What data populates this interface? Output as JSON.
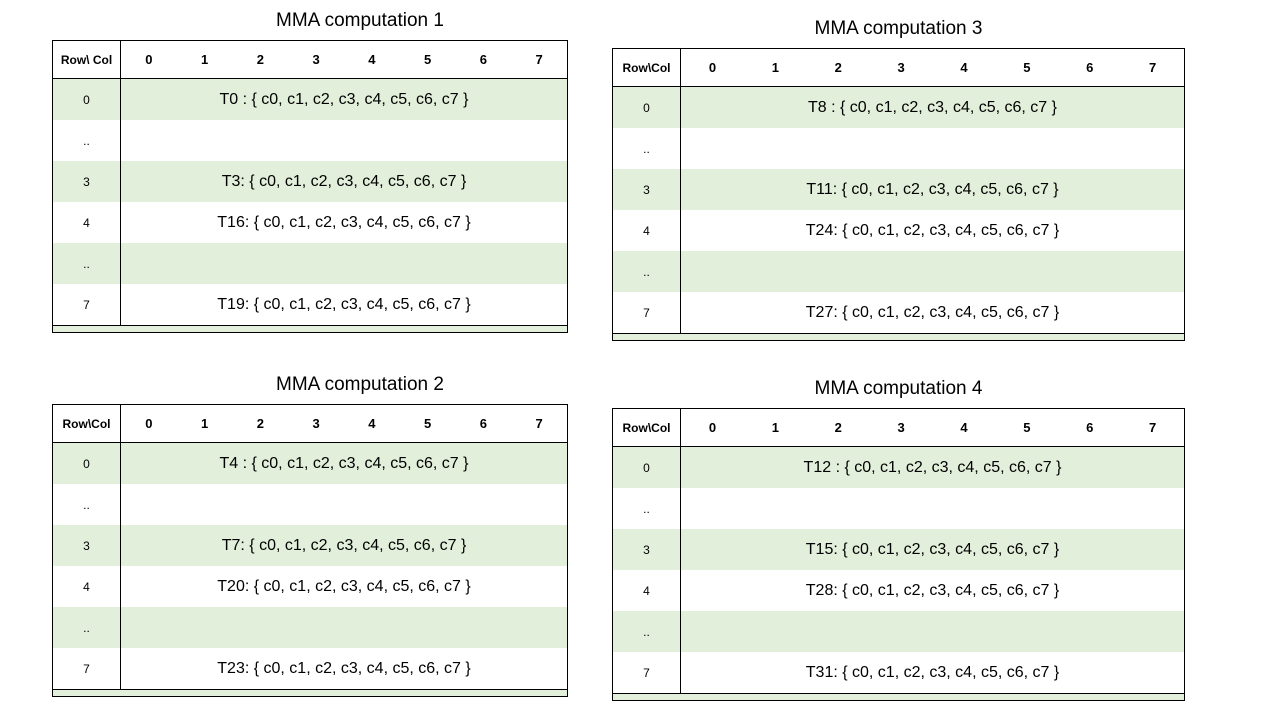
{
  "colors": {
    "shaded_row": "#e2efda",
    "border": "#000000",
    "background": "#ffffff"
  },
  "tables": [
    {
      "title": "MMA computation 1",
      "header": {
        "corner": "Row\\ Col",
        "cols": [
          "0",
          "1",
          "2",
          "3",
          "4",
          "5",
          "6",
          "7"
        ]
      },
      "rows": [
        {
          "label": "0",
          "text": "T0 : { c0, c1, c2, c3, c4, c5, c6, c7 }"
        },
        {
          "label": "..",
          "text": ""
        },
        {
          "label": "3",
          "text": "T3: { c0, c1, c2, c3, c4, c5, c6, c7 }"
        },
        {
          "label": "4",
          "text": "T16: { c0, c1, c2, c3, c4, c5, c6, c7 }"
        },
        {
          "label": "..",
          "text": ""
        },
        {
          "label": "7",
          "text": "T19: { c0, c1, c2, c3, c4, c5, c6, c7 }"
        }
      ]
    },
    {
      "title": "MMA computation 3",
      "header": {
        "corner": "Row\\Col",
        "cols": [
          "0",
          "1",
          "2",
          "3",
          "4",
          "5",
          "6",
          "7"
        ]
      },
      "rows": [
        {
          "label": "0",
          "text": "T8 : { c0, c1, c2, c3, c4, c5, c6, c7 }"
        },
        {
          "label": "..",
          "text": ""
        },
        {
          "label": "3",
          "text": "T11: { c0, c1, c2, c3, c4, c5, c6, c7 }"
        },
        {
          "label": "4",
          "text": "T24: { c0, c1, c2, c3, c4, c5, c6, c7 }"
        },
        {
          "label": "..",
          "text": ""
        },
        {
          "label": "7",
          "text": "T27: { c0, c1, c2, c3, c4, c5, c6, c7 }"
        }
      ]
    },
    {
      "title": "MMA computation 2",
      "header": {
        "corner": "Row\\Col",
        "cols": [
          "0",
          "1",
          "2",
          "3",
          "4",
          "5",
          "6",
          "7"
        ]
      },
      "rows": [
        {
          "label": "0",
          "text": "T4 : { c0, c1, c2, c3, c4, c5, c6, c7 }"
        },
        {
          "label": "..",
          "text": ""
        },
        {
          "label": "3",
          "text": "T7: { c0, c1, c2, c3, c4, c5, c6, c7 }"
        },
        {
          "label": "4",
          "text": "T20: { c0, c1, c2, c3, c4, c5, c6, c7 }"
        },
        {
          "label": "..",
          "text": ""
        },
        {
          "label": "7",
          "text": "T23: { c0, c1, c2, c3, c4, c5, c6, c7 }"
        }
      ]
    },
    {
      "title": "MMA computation 4",
      "header": {
        "corner": "Row\\Col",
        "cols": [
          "0",
          "1",
          "2",
          "3",
          "4",
          "5",
          "6",
          "7"
        ]
      },
      "rows": [
        {
          "label": "0",
          "text": "T12 : { c0, c1, c2, c3, c4, c5, c6, c7 }"
        },
        {
          "label": "..",
          "text": ""
        },
        {
          "label": "3",
          "text": "T15: { c0, c1, c2, c3, c4, c5, c6, c7 }"
        },
        {
          "label": "4",
          "text": "T28: { c0, c1, c2, c3, c4, c5, c6, c7 }"
        },
        {
          "label": "..",
          "text": ""
        },
        {
          "label": "7",
          "text": "T31: { c0, c1, c2, c3, c4, c5, c6, c7 }"
        }
      ]
    }
  ]
}
